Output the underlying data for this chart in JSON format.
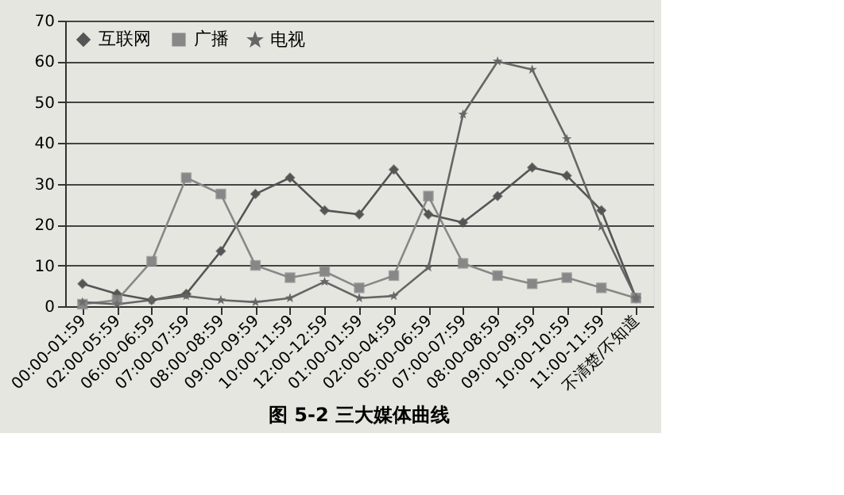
{
  "chart_data": {
    "type": "line",
    "title": "图 5-2  三大媒体曲线",
    "categories": [
      "00:00-01:59",
      "02:00-05:59",
      "06:00-06:59",
      "07:00-07:59",
      "08:00-08:59",
      "09:00-09:59",
      "10:00-11:59",
      "12:00-12:59",
      "01:00-01:59",
      "02:00-04:59",
      "05:00-06:59",
      "07:00-07:59",
      "08:00-08:59",
      "09:00-09:59",
      "10:00-10:59",
      "11:00-11:59",
      "不清楚/不知道"
    ],
    "series": [
      {
        "name": "互联网",
        "color": "#555555",
        "marker": "diamond",
        "values": [
          5.5,
          3,
          1.5,
          3,
          13.5,
          27.5,
          31.5,
          23.5,
          22.5,
          33.5,
          22.5,
          20.5,
          27,
          34,
          32,
          23.5,
          2
        ]
      },
      {
        "name": "广播",
        "color": "#888888",
        "marker": "square",
        "values": [
          0.5,
          1.5,
          11,
          31.5,
          27.5,
          10,
          7,
          8.5,
          4.5,
          7.5,
          27,
          10.5,
          7.5,
          5.5,
          7,
          4.5,
          2
        ]
      },
      {
        "name": "电视",
        "color": "#666666",
        "marker": "star",
        "values": [
          1,
          0.5,
          1.5,
          2.5,
          1.5,
          1,
          2,
          6,
          2,
          2.5,
          9.5,
          47,
          60,
          58,
          41,
          19.5,
          2
        ]
      }
    ],
    "ylim": [
      0,
      70
    ],
    "yticks": [
      0,
      10,
      20,
      30,
      40,
      50,
      60,
      70
    ],
    "grid": "y",
    "legend": "top left"
  }
}
